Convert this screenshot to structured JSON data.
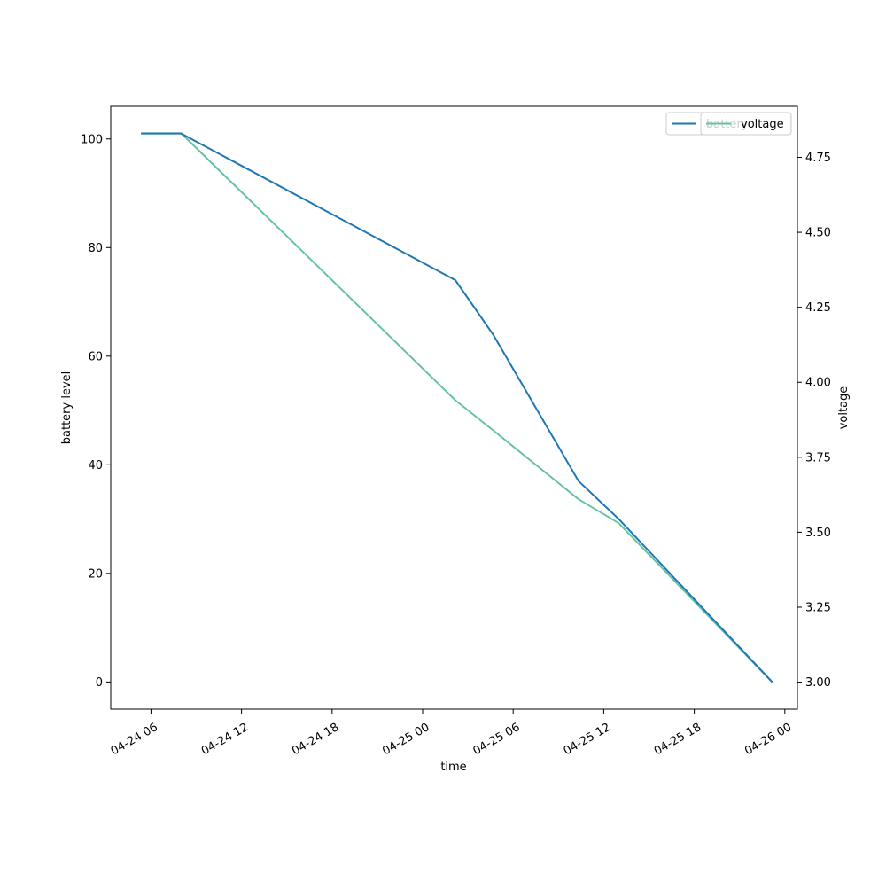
{
  "chart_data": {
    "type": "line",
    "xlabel": "time",
    "ylabel": "battery level",
    "y2label": "voltage",
    "x_ticks": [
      "04-24 06",
      "04-24 12",
      "04-24 18",
      "04-25 00",
      "04-25 06",
      "04-25 12",
      "04-25 18",
      "04-26 00"
    ],
    "x_tick_values": [
      "2024-04-24 06:00",
      "2024-04-24 12:00",
      "2024-04-24 18:00",
      "2024-04-25 00:00",
      "2024-04-25 06:00",
      "2024-04-25 12:00",
      "2024-04-25 18:00",
      "2024-04-26 00:00"
    ],
    "xlim": [
      "2024-04-24 03:20",
      "2024-04-26 00:50"
    ],
    "ylim": [
      -5,
      106
    ],
    "y_ticks": [
      "0",
      "20",
      "40",
      "60",
      "80",
      "100"
    ],
    "y2lim": [
      2.91,
      4.92
    ],
    "y2_ticks": [
      "3.00",
      "3.25",
      "3.50",
      "3.75",
      "4.00",
      "4.25",
      "4.50",
      "4.75"
    ],
    "grid": false,
    "legend_position": "top-right",
    "series": [
      {
        "name": "battery",
        "axis": "left",
        "color": "#1f77b4",
        "x": [
          "2024-04-24 05:20",
          "2024-04-24 08:00",
          "2024-04-25 02:10",
          "2024-04-25 04:40",
          "2024-04-25 10:20",
          "2024-04-25 13:00",
          "2024-04-25 23:10"
        ],
        "values": [
          101,
          101,
          74,
          64,
          37,
          30,
          0
        ]
      },
      {
        "name": "voltage",
        "axis": "right",
        "color": "#66c2a5",
        "x": [
          "2024-04-24 05:20",
          "2024-04-24 08:00",
          "2024-04-25 02:10",
          "2024-04-25 04:40",
          "2024-04-25 10:20",
          "2024-04-25 13:00",
          "2024-04-25 23:10"
        ],
        "values": [
          4.83,
          4.83,
          3.94,
          3.84,
          3.61,
          3.53,
          3.0
        ]
      }
    ]
  }
}
